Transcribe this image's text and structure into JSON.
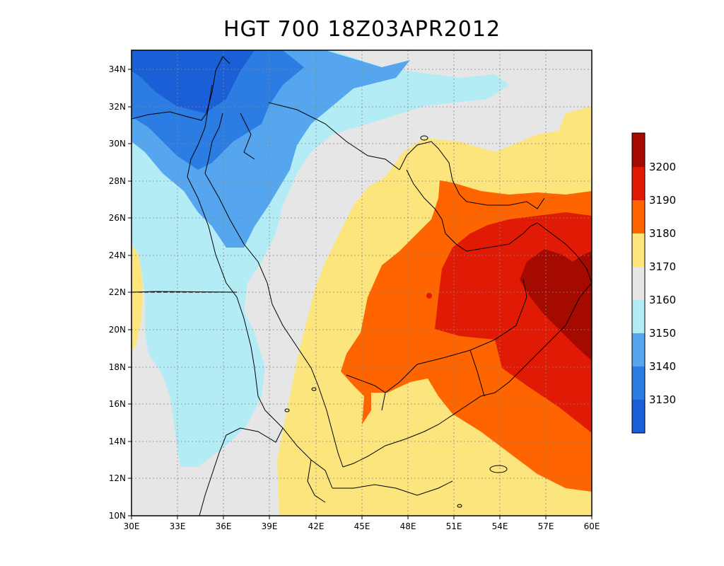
{
  "title": "HGT 700 18Z03APR2012",
  "map": {
    "lon_range": [
      30,
      60
    ],
    "lat_range": [
      10,
      35
    ],
    "grid": "dotted",
    "lat_ticks": [
      "34N",
      "32N",
      "30N",
      "28N",
      "26N",
      "24N",
      "22N",
      "20N",
      "18N",
      "16N",
      "14N",
      "12N",
      "10N"
    ],
    "lon_ticks": [
      "30E",
      "33E",
      "36E",
      "39E",
      "42E",
      "45E",
      "48E",
      "51E",
      "54E",
      "57E",
      "60E"
    ],
    "fill_levels": [
      {
        "name": "<3130",
        "color": "#1a5fd6"
      },
      {
        "name": "3130-3140",
        "color": "#2b7de3"
      },
      {
        "name": "3140-3150",
        "color": "#55a6ef"
      },
      {
        "name": "3150-3160",
        "color": "#b4ecf6"
      },
      {
        "name": "3160-3170",
        "color": "#e6e6e6"
      },
      {
        "name": "3170-3180",
        "color": "#fde57e"
      },
      {
        "name": "3180-3190",
        "color": "#fe6400"
      },
      {
        "name": "3190-3200",
        "color": "#e01a05"
      },
      {
        "name": ">3200",
        "color": "#a50a00"
      }
    ]
  },
  "colorbar": {
    "labels": [
      "3200",
      "3190",
      "3180",
      "3170",
      "3160",
      "3150",
      "3140",
      "3130"
    ],
    "colors": [
      "#a50a00",
      "#e01a05",
      "#fe6400",
      "#fde57e",
      "#e6e6e6",
      "#b4ecf6",
      "#55a6ef",
      "#2b7de3",
      "#1a5fd6"
    ]
  }
}
